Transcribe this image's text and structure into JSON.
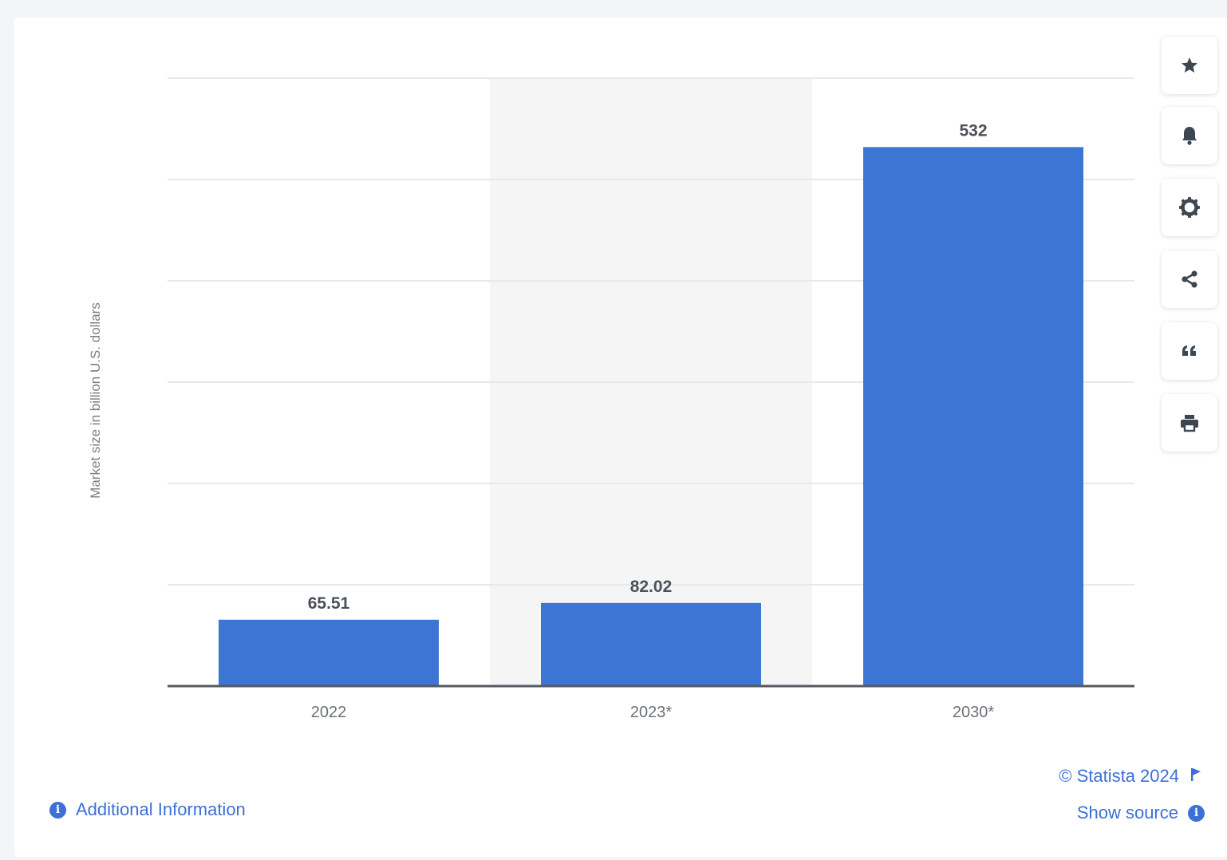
{
  "chart_data": {
    "type": "bar",
    "categories": [
      "2022",
      "2023*",
      "2030*"
    ],
    "values": [
      65.51,
      82.02,
      532
    ],
    "data_labels": [
      "65.51",
      "82.02",
      "532"
    ],
    "title": "",
    "xlabel": "",
    "ylabel": "Market size in billion U.S. dollars",
    "ylim": [
      0,
      600
    ],
    "grid": true,
    "bar_color": "#3c75d4",
    "highlight_band_category": "2023*"
  },
  "footer": {
    "additional_info": "Additional Information",
    "copyright": "© Statista 2024",
    "show_source": "Show source"
  },
  "toolbar": {
    "icons": [
      "star-icon",
      "bell-icon",
      "gear-icon",
      "share-icon",
      "quote-icon",
      "print-icon"
    ]
  },
  "colors": {
    "accent": "#3c70d8",
    "bar": "#3c75d4",
    "icon": "#3d4752"
  }
}
